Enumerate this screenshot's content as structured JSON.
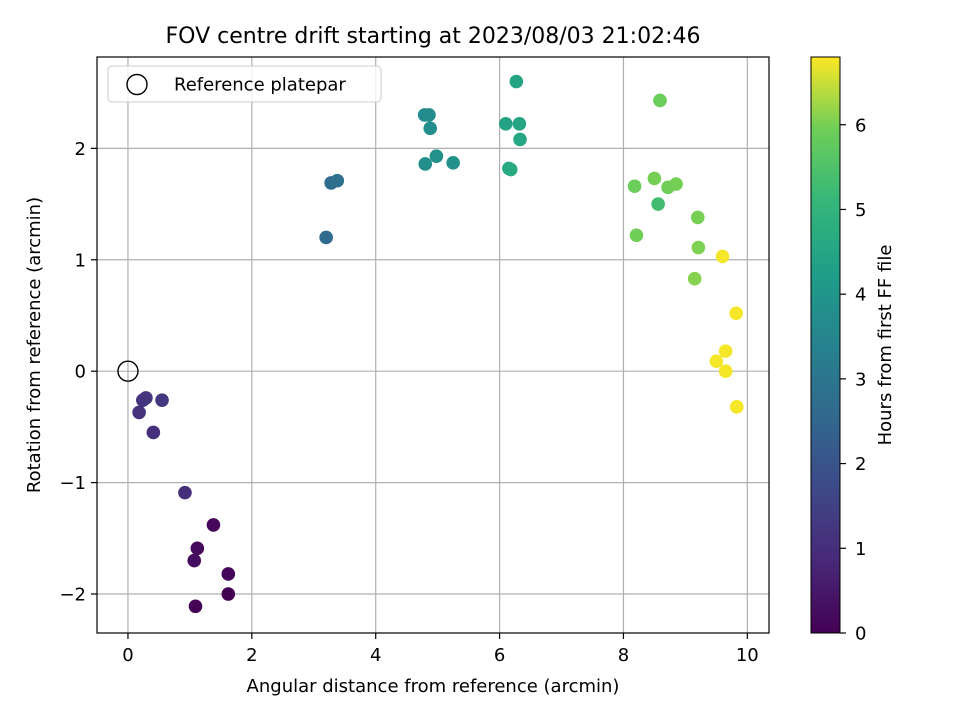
{
  "chart_data": {
    "type": "scatter",
    "title": "FOV centre drift starting at 2023/08/03 21:02:46",
    "xlabel": "Angular distance from reference (arcmin)",
    "ylabel": "Rotation from reference (arcmin)",
    "xlim": [
      -0.5,
      10.35
    ],
    "ylim": [
      -2.35,
      2.82
    ],
    "xticks": [
      0,
      2,
      4,
      6,
      8,
      10
    ],
    "xtick_labels": [
      "0",
      "2",
      "4",
      "6",
      "8",
      "10"
    ],
    "yticks": [
      -2,
      -1,
      0,
      1,
      2
    ],
    "ytick_labels": [
      "−2",
      "−1",
      "0",
      "1",
      "2"
    ],
    "grid": true,
    "legend": {
      "placement": "top-left",
      "entries": [
        "Reference platepar"
      ]
    },
    "reference_point": {
      "label": "Reference platepar",
      "x": 0,
      "y": 0,
      "marker": "open-circle"
    },
    "colorbar": {
      "label": "Hours from first FF file",
      "colormap": "viridis",
      "range": [
        0,
        6.8
      ],
      "ticks": [
        0,
        1,
        2,
        3,
        4,
        5,
        6
      ],
      "tick_labels": [
        "0",
        "1",
        "2",
        "3",
        "4",
        "5",
        "6"
      ]
    },
    "series": [
      {
        "x": [
          1.62,
          1.09,
          1.62,
          1.38,
          1.12,
          1.07,
          0.92,
          0.41,
          0.18,
          0.24,
          0.29,
          0.55,
          3.2,
          3.28,
          3.38,
          4.79,
          4.86,
          4.88,
          4.8,
          4.98,
          5.25,
          6.1,
          6.27,
          6.32,
          6.33,
          6.15,
          6.18,
          8.18,
          8.21,
          8.5,
          8.56,
          8.59,
          8.72,
          8.85,
          9.2,
          9.21,
          9.15,
          9.6,
          9.82,
          9.65,
          9.65,
          9.5,
          9.83
        ],
        "y": [
          -2.0,
          -2.11,
          -1.82,
          -1.38,
          -1.59,
          -1.7,
          -1.09,
          -0.55,
          -0.37,
          -0.26,
          -0.24,
          -0.26,
          1.2,
          1.69,
          1.71,
          2.3,
          2.3,
          2.18,
          1.86,
          1.93,
          1.87,
          2.22,
          2.6,
          2.22,
          2.08,
          1.82,
          1.81,
          1.66,
          1.22,
          1.73,
          1.5,
          2.43,
          1.65,
          1.68,
          1.38,
          1.11,
          0.83,
          1.03,
          0.52,
          0.18,
          0.0,
          0.09,
          -0.32
        ],
        "hours": [
          0.0,
          0.05,
          0.1,
          0.15,
          0.2,
          0.25,
          1.0,
          1.05,
          1.1,
          1.15,
          1.2,
          1.25,
          2.6,
          2.7,
          2.8,
          3.65,
          3.7,
          3.75,
          3.8,
          3.85,
          3.9,
          4.4,
          4.45,
          4.5,
          4.55,
          4.6,
          4.65,
          5.9,
          5.95,
          6.0,
          5.3,
          5.9,
          5.95,
          6.0,
          6.0,
          6.05,
          6.1,
          6.75,
          6.75,
          6.75,
          6.75,
          6.75,
          6.75
        ]
      }
    ]
  }
}
